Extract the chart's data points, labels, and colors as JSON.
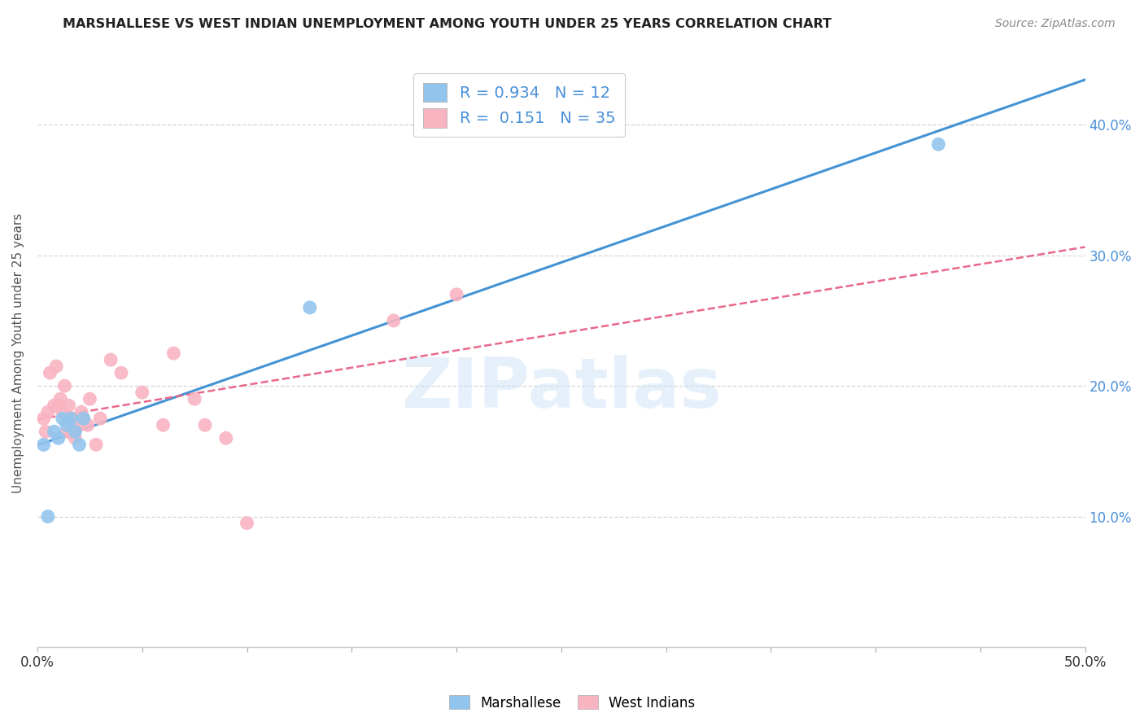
{
  "title": "MARSHALLESE VS WEST INDIAN UNEMPLOYMENT AMONG YOUTH UNDER 25 YEARS CORRELATION CHART",
  "source": "Source: ZipAtlas.com",
  "ylabel": "Unemployment Among Youth under 25 years",
  "xlim": [
    0.0,
    0.5
  ],
  "ylim": [
    0.0,
    0.45
  ],
  "ytick_positions": [
    0.1,
    0.2,
    0.3,
    0.4
  ],
  "ytick_labels": [
    "10.0%",
    "20.0%",
    "30.0%",
    "40.0%"
  ],
  "watermark": "ZIPatlas",
  "marshallese_R": 0.934,
  "marshallese_N": 12,
  "westindian_R": 0.151,
  "westindian_N": 35,
  "marshallese_color": "#92C5ED",
  "westindian_color": "#F9B4C2",
  "marshallese_line_color": "#4393D5",
  "westindian_line_color": "#E8698A",
  "marshallese_x": [
    0.003,
    0.005,
    0.008,
    0.01,
    0.012,
    0.014,
    0.016,
    0.018,
    0.02,
    0.022,
    0.13,
    0.43
  ],
  "marshallese_y": [
    0.155,
    0.1,
    0.165,
    0.16,
    0.175,
    0.17,
    0.175,
    0.165,
    0.155,
    0.175,
    0.26,
    0.385
  ],
  "westindian_x": [
    0.003,
    0.004,
    0.005,
    0.006,
    0.008,
    0.009,
    0.01,
    0.011,
    0.012,
    0.013,
    0.014,
    0.015,
    0.015,
    0.016,
    0.017,
    0.018,
    0.019,
    0.02,
    0.021,
    0.022,
    0.024,
    0.025,
    0.028,
    0.03,
    0.035,
    0.04,
    0.05,
    0.06,
    0.065,
    0.075,
    0.08,
    0.09,
    0.1,
    0.17,
    0.2
  ],
  "westindian_y": [
    0.175,
    0.165,
    0.18,
    0.21,
    0.185,
    0.215,
    0.185,
    0.19,
    0.18,
    0.2,
    0.165,
    0.185,
    0.175,
    0.165,
    0.175,
    0.16,
    0.175,
    0.17,
    0.18,
    0.175,
    0.17,
    0.19,
    0.155,
    0.175,
    0.22,
    0.21,
    0.195,
    0.17,
    0.225,
    0.19,
    0.17,
    0.16,
    0.095,
    0.25,
    0.27
  ]
}
